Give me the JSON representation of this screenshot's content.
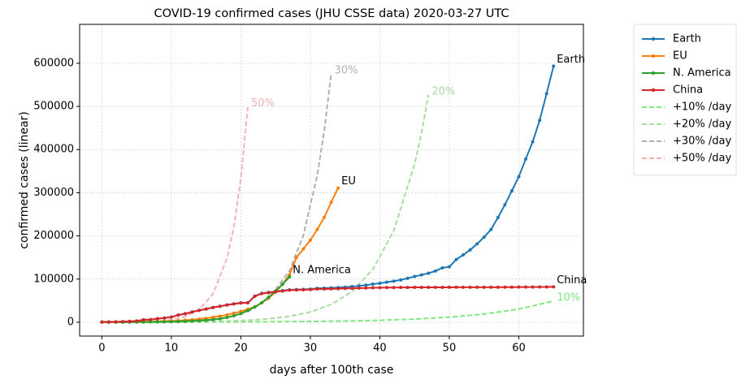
{
  "chart_data": {
    "type": "line",
    "title": "COVID-19 confirmed cases (JHU CSSE data) 2020-03-27 UTC",
    "xlabel": "days after 100th case",
    "ylabel": "confirmed cases (linear)",
    "xlim": [
      -3.2,
      69.3
    ],
    "xticks": [
      0,
      10,
      20,
      30,
      40,
      50,
      60
    ],
    "ylim": [
      -32000,
      690000
    ],
    "yticks": [
      0,
      100000,
      200000,
      300000,
      400000,
      500000,
      600000
    ],
    "grid": true,
    "legend": "outside right",
    "series": [
      {
        "name": "Earth",
        "color": "#1f77b4",
        "label": "Earth",
        "markers": true,
        "values": [
          555,
          654,
          941,
          1434,
          2118,
          2927,
          5578,
          6166,
          8234,
          9927,
          12038,
          16787,
          19881,
          23892,
          27635,
          30794,
          34391,
          37120,
          40150,
          42762,
          44802,
          45221,
          60368,
          66885,
          69030,
          71224,
          73258,
          75136,
          75639,
          76197,
          76819,
          78572,
          78958,
          79561,
          80406,
          81388,
          82746,
          84112,
          86011,
          88369,
          90306,
          92840,
          95120,
          97886,
          101801,
          105847,
          109821,
          113590,
          118620,
          125875,
          128352,
          145205,
          156101,
          167454,
          181574,
          197102,
          214821,
          242570,
          272208,
          304507,
          336953,
          378235,
          418045,
          467653,
          529591,
          593291
        ]
      },
      {
        "name": "EU",
        "color": "#ff7f0e",
        "label": "EU",
        "markers": true,
        "values": [
          100,
          150,
          230,
          330,
          470,
          650,
          900,
          1200,
          1600,
          2100,
          2800,
          3600,
          4600,
          5800,
          7200,
          9000,
          11500,
          14000,
          17000,
          21000,
          25000,
          30000,
          36000,
          45000,
          56000,
          70000,
          88000,
          110000,
          150000,
          170000,
          190000,
          215000,
          243000,
          278000,
          311000
        ]
      },
      {
        "name": "N. America",
        "color": "#2ca02c",
        "label": "N. America",
        "markers": true,
        "values": [
          100,
          120,
          150,
          200,
          260,
          340,
          440,
          570,
          740,
          960,
          1250,
          1600,
          2100,
          2700,
          3500,
          4600,
          6000,
          8000,
          11000,
          15000,
          20000,
          27000,
          35000,
          45000,
          58000,
          72000,
          88000,
          105000
        ]
      },
      {
        "name": "China",
        "color": "#d62728",
        "label": "China",
        "markers": true,
        "values": [
          548,
          643,
          920,
          1406,
          2075,
          2877,
          5509,
          6087,
          8141,
          9802,
          11891,
          16630,
          19716,
          23707,
          27440,
          30587,
          34110,
          36814,
          39829,
          42354,
          44386,
          44759,
          59895,
          66358,
          68413,
          70513,
          72434,
          74211,
          74619,
          75077,
          75550,
          77001,
          77022,
          77241,
          77754,
          78166,
          78600,
          78928,
          79356,
          79932,
          80136,
          80261,
          80386,
          80537,
          80690,
          80770,
          80823,
          80860,
          80887,
          80921,
          80932,
          80945,
          80977,
          81003,
          81033,
          81058,
          81102,
          81156,
          81250,
          81305,
          81435,
          81498,
          81591,
          81661,
          81782,
          81897
        ]
      },
      {
        "name": "+10% /day",
        "color": "#7ee87e",
        "label": "10%",
        "dashed": true,
        "x": [
          0,
          5,
          10,
          15,
          20,
          25,
          30,
          35,
          40,
          45,
          50,
          55,
          60,
          65
        ],
        "values": [
          100,
          161,
          259,
          418,
          673,
          1083,
          1745,
          2810,
          4526,
          7289,
          11739,
          18906,
          30448,
          49037
        ]
      },
      {
        "name": "+20% /day",
        "color": "#a8dca0",
        "label": "20%",
        "dashed": true,
        "x": [
          0,
          3,
          6,
          9,
          12,
          15,
          18,
          21,
          24,
          27,
          30,
          33,
          36,
          39,
          42,
          45,
          46,
          47
        ],
        "values": [
          100,
          173,
          299,
          516,
          892,
          1541,
          2662,
          4601,
          7950,
          13737,
          23738,
          41019,
          70880,
          122480,
          211646,
          365725,
          438870,
          526644
        ]
      },
      {
        "name": "+30% /day",
        "color": "#b0b0b0",
        "label": "30%",
        "dashed": true,
        "x": [
          0,
          3,
          6,
          9,
          12,
          15,
          18,
          21,
          24,
          27,
          29,
          31,
          32,
          33
        ],
        "values": [
          100,
          220,
          483,
          1060,
          2330,
          5119,
          11246,
          24705,
          54280,
          119258,
          201546,
          340614,
          442798,
          575637
        ]
      },
      {
        "name": "+50% /day",
        "color": "#f5b3b3",
        "label": "50%",
        "dashed": true,
        "x": [
          0,
          2,
          4,
          6,
          8,
          10,
          12,
          14,
          16,
          18,
          19,
          20,
          21
        ],
        "values": [
          100,
          225,
          506,
          1139,
          2563,
          5767,
          12975,
          29193,
          65684,
          147789,
          221684,
          332526,
          498789
        ]
      }
    ]
  }
}
